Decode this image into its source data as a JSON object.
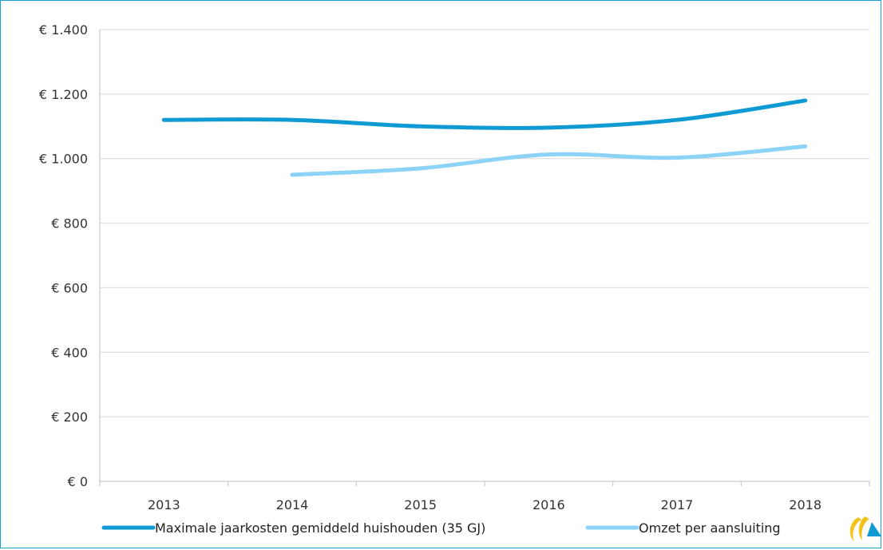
{
  "chart_data": {
    "type": "line",
    "title": "",
    "xlabel": "",
    "ylabel": "",
    "categories": [
      "2013",
      "2014",
      "2015",
      "2016",
      "2017",
      "2018"
    ],
    "ylim": [
      0,
      1400
    ],
    "yticks": [
      0,
      200,
      400,
      600,
      800,
      1000,
      1200,
      1400
    ],
    "ytick_labels": [
      "€ 0",
      "€ 200",
      "€ 400",
      "€ 600",
      "€ 800",
      "€ 1.000",
      "€ 1.200",
      "€ 1.400"
    ],
    "grid": true,
    "legend_position": "bottom",
    "series": [
      {
        "name": "Maximale jaarkosten gemiddeld huishouden (35 GJ)",
        "color": "#0f9ad3",
        "values": [
          1120,
          1120,
          1100,
          1096,
          1120,
          1180
        ]
      },
      {
        "name": "Omzet per aansluiting",
        "color": "#8dd3f7",
        "values": [
          null,
          950,
          970,
          1013,
          1003,
          1038
        ]
      }
    ]
  },
  "logo": {
    "icon": "regulator-logo-icon",
    "colors": [
      "#f2c21a",
      "#0f9ad3"
    ]
  }
}
